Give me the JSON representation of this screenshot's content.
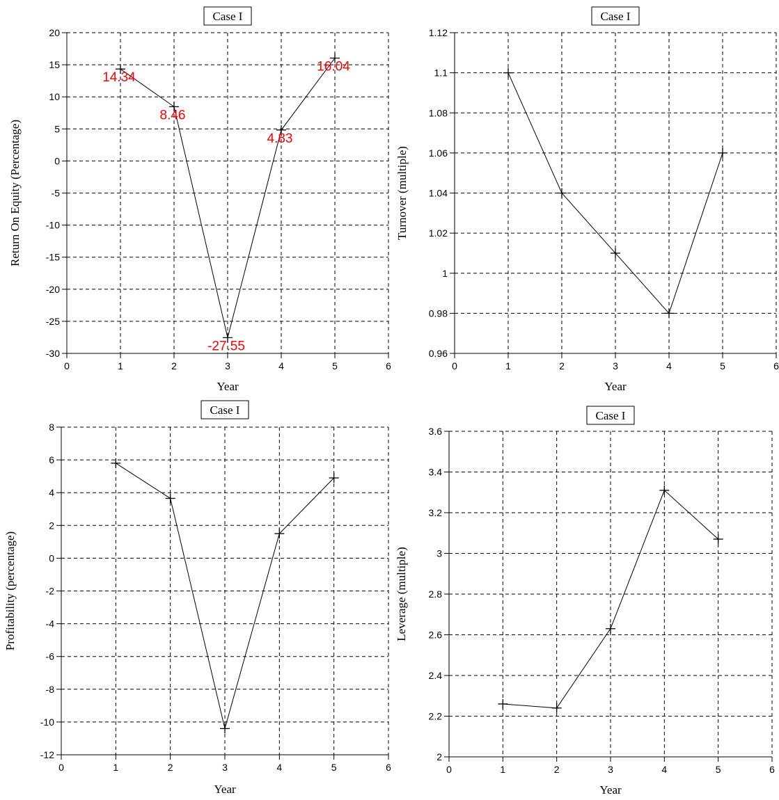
{
  "chart_data": [
    {
      "type": "line",
      "title": "Case I",
      "xlabel": "Year",
      "ylabel": "Return On Equity (Percentage)",
      "xlim": [
        0,
        6
      ],
      "ylim": [
        -30,
        20
      ],
      "xticks": [
        "0",
        "1",
        "2",
        "3",
        "4",
        "5",
        "6"
      ],
      "yticks": [
        "20",
        "15",
        "10",
        "5",
        "0",
        "-5",
        "-10",
        "-15",
        "-20",
        "-25",
        "-30"
      ],
      "grid": true,
      "marker": "plus",
      "label_color": "#ff0000",
      "x": [
        1,
        2,
        3,
        4,
        5
      ],
      "y": [
        14.34,
        8.46,
        -27.55,
        4.83,
        16.04
      ],
      "labels": [
        "14.34",
        "8.46",
        "-27.55",
        "4.83",
        "16.04"
      ]
    },
    {
      "type": "line",
      "title": "Case I",
      "xlabel": "Year",
      "ylabel": "Turnover (multiple)",
      "xlim": [
        0,
        6
      ],
      "ylim": [
        0.96,
        1.12
      ],
      "xticks": [
        "0",
        "1",
        "2",
        "3",
        "4",
        "5",
        "6"
      ],
      "yticks": [
        "1.12",
        "1.1",
        "1.08",
        "1.06",
        "1.04",
        "1.02",
        "1",
        "0.98",
        "0.96"
      ],
      "grid": true,
      "marker": "plus",
      "x": [
        1,
        2,
        3,
        4,
        5
      ],
      "y": [
        1.1,
        1.04,
        1.01,
        0.98,
        1.06
      ]
    },
    {
      "type": "line",
      "title": "Case I",
      "xlabel": "Year",
      "ylabel": "Profitability (percentage)",
      "xlim": [
        0,
        6
      ],
      "ylim": [
        -12,
        8
      ],
      "xticks": [
        "0",
        "1",
        "2",
        "3",
        "4",
        "5",
        "6"
      ],
      "yticks": [
        "8",
        "6",
        "4",
        "2",
        "0",
        "-2",
        "-4",
        "-6",
        "-8",
        "-10",
        "-12"
      ],
      "grid": true,
      "marker": "plus",
      "x": [
        1,
        2,
        3,
        4,
        5
      ],
      "y": [
        5.8,
        3.65,
        -10.4,
        1.5,
        4.9
      ]
    },
    {
      "type": "line",
      "title": "Case I",
      "xlabel": "Year",
      "ylabel": "Leverage (multiple)",
      "xlim": [
        0,
        6
      ],
      "ylim": [
        2,
        3.6
      ],
      "xticks": [
        "0",
        "1",
        "2",
        "3",
        "4",
        "5",
        "6"
      ],
      "yticks": [
        "3.6",
        "3.4",
        "3.2",
        "3",
        "2.8",
        "2.6",
        "2.4",
        "2.2",
        "2"
      ],
      "grid": true,
      "marker": "plus",
      "x": [
        1,
        2,
        3,
        4,
        5
      ],
      "y": [
        2.26,
        2.24,
        2.63,
        3.31,
        3.07
      ]
    }
  ]
}
